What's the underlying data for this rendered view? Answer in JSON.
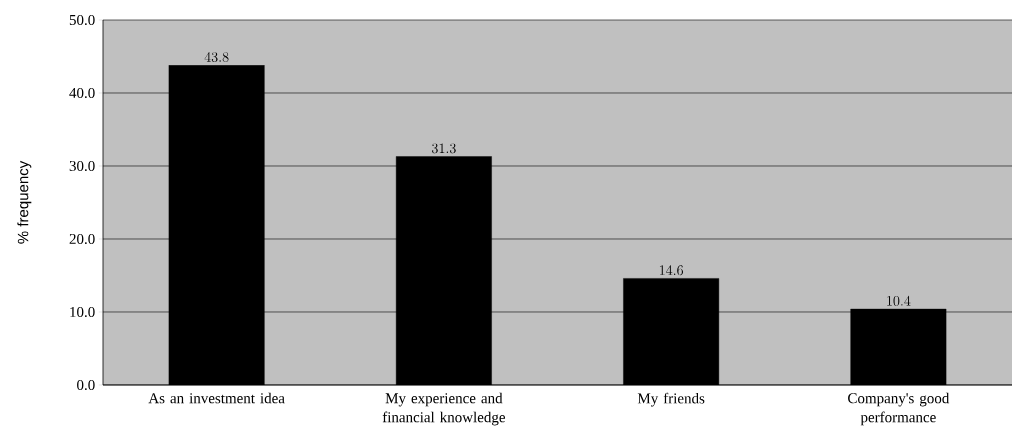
{
  "chart_data": {
    "type": "bar",
    "categories": [
      "As an investment idea",
      "My experience and financial knowledge",
      "My friends",
      "Company's good performance"
    ],
    "values": [
      43.8,
      31.3,
      14.6,
      10.4
    ],
    "color": "#000000",
    "ylabel": "% frequency",
    "ylim": [
      0,
      50
    ],
    "yticks": [
      {
        "value": 0,
        "label": "0.0"
      },
      {
        "value": 10,
        "label": "10.0"
      },
      {
        "value": 20,
        "label": "20.0"
      },
      {
        "value": 30,
        "label": "30.0"
      },
      {
        "value": 40,
        "label": "40.0"
      },
      {
        "value": 50,
        "label": "50.0"
      }
    ],
    "grid": "y",
    "data_labels": true
  }
}
